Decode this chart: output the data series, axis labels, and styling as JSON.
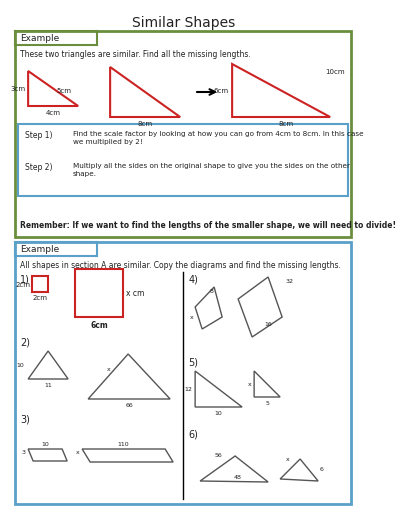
{
  "title": "Similar Shapes",
  "green_color": "#6b8e3e",
  "blue_color": "#5aa0c8",
  "red_color": "#cc2222",
  "dark_color": "#555555",
  "black": "#000000",
  "white": "#ffffff",
  "text_color": "#222222",
  "example1_intro": "These two triangles are similar. Find all the missing lengths.",
  "step1_label": "Step 1)",
  "step1_text": "Find the scale factor by looking at how you can go from 4cm to 8cm. In this case\nwe multiplied by 2!",
  "step2_label": "Step 2)",
  "step2_text": "Multiply all the sides on the original shape to give you the sides on the other\nshape.",
  "remember": "Remember: If we want to find the lengths of the smaller shape, we will need to divide!",
  "example2_intro": "All shapes in section A are similar. Copy the diagrams and find the missing lengths."
}
